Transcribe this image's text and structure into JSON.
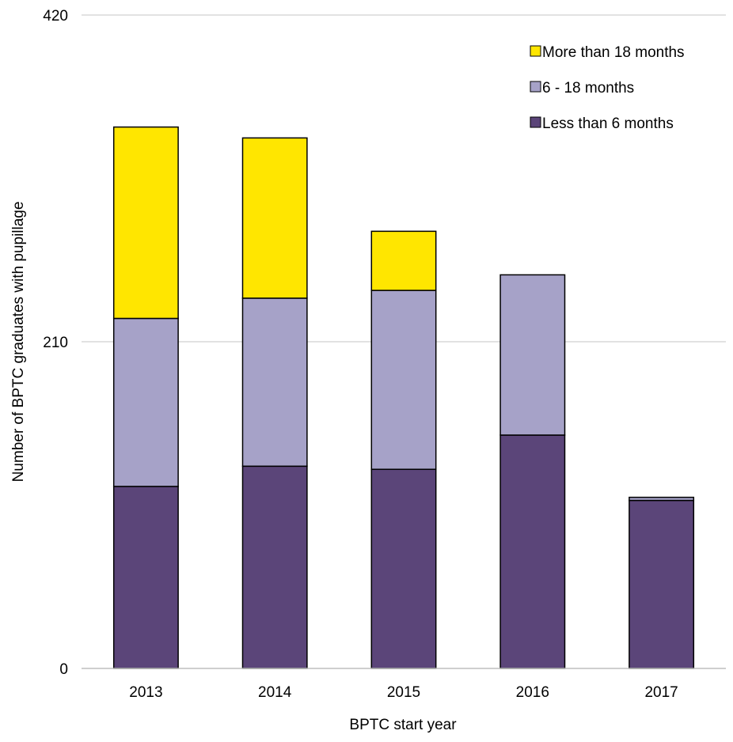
{
  "chart_data": {
    "type": "bar",
    "stacked": true,
    "categories": [
      "2013",
      "2014",
      "2015",
      "2016",
      "2017"
    ],
    "series": [
      {
        "name": "Less than 6 months",
        "color": "#5b4579",
        "values": [
          117,
          130,
          128,
          150,
          108
        ]
      },
      {
        "name": "6 - 18 months",
        "color": "#a6a2c8",
        "values": [
          108,
          108,
          115,
          103,
          2
        ]
      },
      {
        "name": "More than 18 months",
        "color": "#ffe600",
        "values": [
          123,
          103,
          38,
          0,
          0
        ]
      }
    ],
    "title": "",
    "xlabel": "BPTC start year",
    "ylabel": "Number of BPTC graduates with pupillage",
    "ylim": [
      0,
      420
    ],
    "yticks": [
      "0",
      "210",
      "420"
    ],
    "grid": true,
    "legend_position": "top-right",
    "legend_order": [
      "More than 18 months",
      "6 - 18 months",
      "Less than 6 months"
    ]
  }
}
